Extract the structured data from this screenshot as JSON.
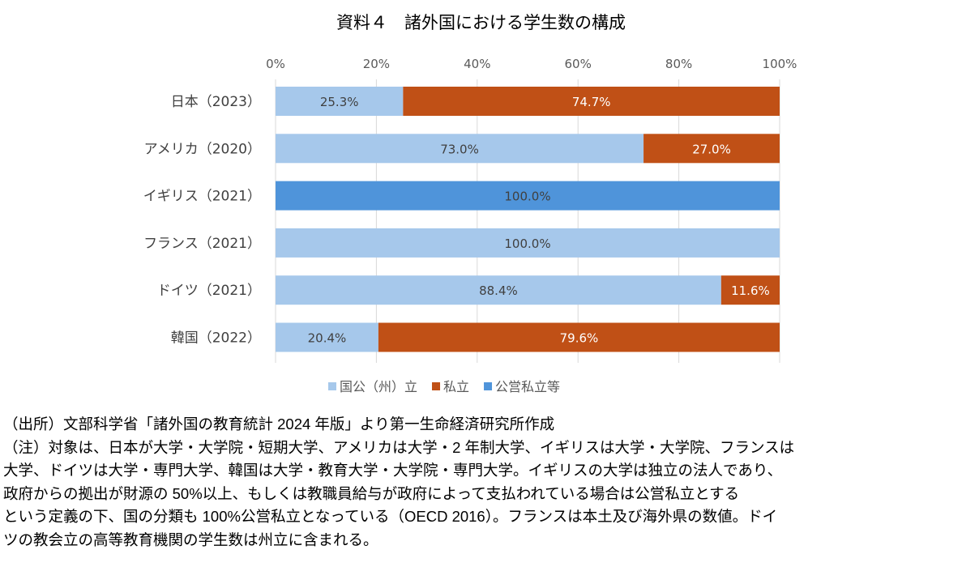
{
  "chart_data": {
    "type": "bar",
    "orientation": "horizontal",
    "stacked": "100%",
    "title": "資料４　諸外国における学生数の構成",
    "categories": [
      "日本(2023)",
      "アメリカ(2020)",
      "イギリス(2021)",
      "フランス(2021)",
      "ドイツ(2021)",
      "韓国(2022)"
    ],
    "series": [
      {
        "name": "国公(州)立",
        "color": "#a6c8eb",
        "label_color": "#404040",
        "values": [
          25.3,
          73.0,
          0,
          100.0,
          88.4,
          20.4
        ]
      },
      {
        "name": "私立",
        "color": "#c05016",
        "label_color": "#ffffff",
        "values": [
          74.7,
          27.0,
          0,
          0,
          11.6,
          79.6
        ]
      },
      {
        "name": "公営私立等",
        "color": "#4f94da",
        "label_color": "#404040",
        "values": [
          0,
          0,
          100.0,
          0,
          0,
          0
        ]
      }
    ],
    "data_labels": [
      [
        "25.3%",
        "74.7%",
        ""
      ],
      [
        "73.0%",
        "27.0%",
        ""
      ],
      [
        "",
        "",
        "100.0%"
      ],
      [
        "100.0%",
        "",
        ""
      ],
      [
        "88.4%",
        "11.6%",
        ""
      ],
      [
        "20.4%",
        "79.6%",
        ""
      ]
    ],
    "xlim": [
      0,
      100
    ],
    "x_ticks": [
      "0%",
      "20%",
      "40%",
      "60%",
      "80%",
      "100%"
    ],
    "x_axis_position": "top",
    "grid": true,
    "legend_position": "bottom"
  },
  "notes": [
    "（出所）文部科学省「諸外国の教育統計 2024 年版」より第一生命経済研究所作成",
    "（注）対象は、日本が大学・大学院・短期大学、アメリカは大学・2 年制大学、イギリスは大学・大学院、フランスは",
    "大学、ドイツは大学・専門大学、韓国は大学・教育大学・大学院・専門大学。イギリスの大学は独立の法人であり、",
    "政府からの拠出が財源の 50%以上、もしくは教職員給与が政府によって支払われている場合は公営私立とする",
    "という定義の下、国の分類も 100%公営私立となっている（OECD 2016）。フランスは本土及び海外県の数値。ドイ",
    "ツの教会立の高等教育機関の学生数は州立に含まれる。"
  ]
}
